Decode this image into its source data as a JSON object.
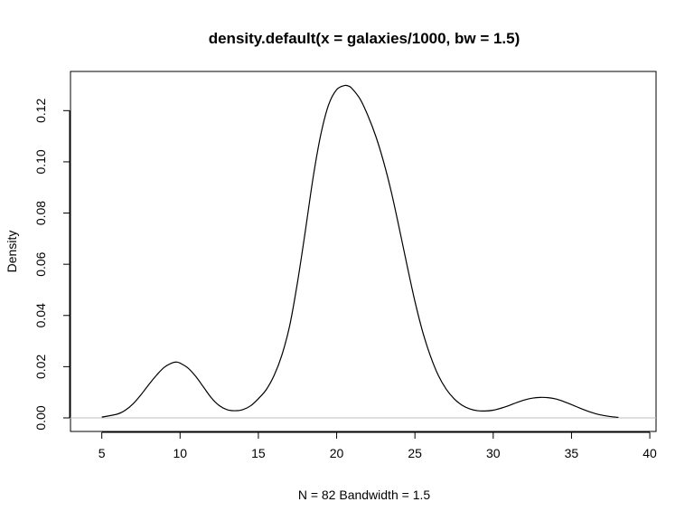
{
  "chart_data": {
    "type": "line",
    "title": "density.default(x = galaxies/1000, bw = 1.5)",
    "xlabel": "N = 82   Bandwidth = 1.5",
    "ylabel": "Density",
    "xlim": [
      3.0,
      40.4
    ],
    "ylim": [
      -0.0053,
      0.1353
    ],
    "x_ticks": [
      5,
      10,
      15,
      20,
      25,
      30,
      35,
      40
    ],
    "y_ticks": [
      0.0,
      0.02,
      0.04,
      0.06,
      0.08,
      0.1,
      0.12
    ],
    "x_tick_labels": [
      "5",
      "10",
      "15",
      "20",
      "25",
      "30",
      "35",
      "40"
    ],
    "y_tick_labels": [
      "0.00",
      "0.02",
      "0.04",
      "0.06",
      "0.08",
      "0.10",
      "0.12"
    ],
    "zero_line": true,
    "series": [
      {
        "name": "density",
        "x": [
          5.0,
          6.0,
          6.5,
          7.0,
          7.5,
          8.0,
          8.5,
          9.0,
          9.5,
          9.8,
          10.0,
          10.5,
          11.0,
          11.5,
          12.0,
          12.5,
          13.0,
          13.5,
          14.0,
          14.5,
          15.0,
          15.5,
          16.0,
          16.5,
          17.0,
          17.5,
          18.0,
          18.5,
          19.0,
          19.5,
          20.0,
          20.5,
          20.8,
          21.0,
          21.5,
          22.0,
          22.5,
          23.0,
          23.5,
          24.0,
          24.5,
          25.0,
          25.5,
          26.0,
          26.5,
          27.0,
          27.5,
          28.0,
          28.5,
          29.0,
          29.5,
          30.0,
          30.5,
          31.0,
          31.5,
          32.0,
          32.5,
          33.0,
          33.5,
          34.0,
          34.5,
          35.0,
          35.5,
          36.0,
          36.5,
          37.0,
          37.5,
          38.0
        ],
        "y": [
          0.0003,
          0.0015,
          0.003,
          0.0055,
          0.009,
          0.013,
          0.0167,
          0.0198,
          0.0215,
          0.0218,
          0.0214,
          0.0195,
          0.0162,
          0.012,
          0.0078,
          0.0048,
          0.0032,
          0.0028,
          0.0032,
          0.0047,
          0.0075,
          0.011,
          0.0165,
          0.0245,
          0.036,
          0.053,
          0.073,
          0.094,
          0.111,
          0.1225,
          0.1282,
          0.1298,
          0.1295,
          0.1285,
          0.1245,
          0.118,
          0.11,
          0.1,
          0.088,
          0.074,
          0.0595,
          0.0455,
          0.0335,
          0.024,
          0.0165,
          0.0112,
          0.0075,
          0.005,
          0.0035,
          0.0028,
          0.0027,
          0.003,
          0.0038,
          0.0048,
          0.006,
          0.007,
          0.0077,
          0.008,
          0.0079,
          0.0074,
          0.0064,
          0.0052,
          0.0039,
          0.0027,
          0.0017,
          0.001,
          0.0005,
          0.0002
        ]
      }
    ]
  }
}
